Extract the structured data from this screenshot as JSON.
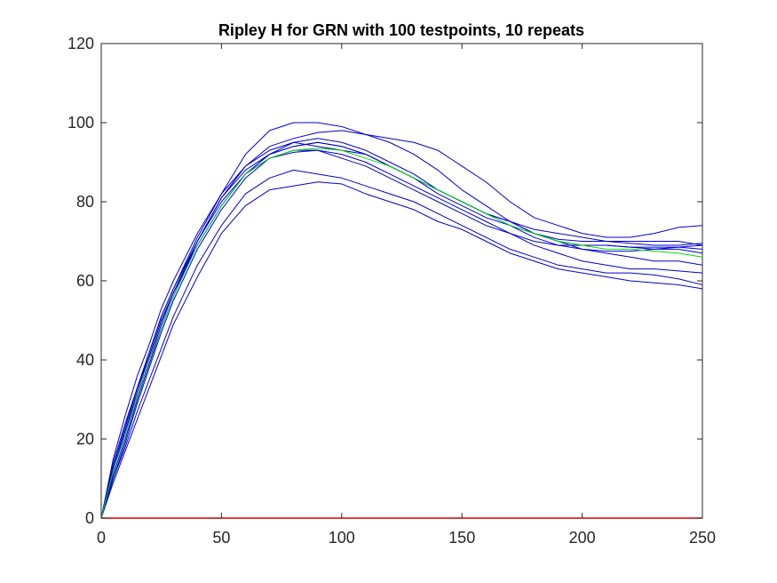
{
  "chart_data": {
    "type": "line",
    "title": "Ripley H for GRN with 100 testpoints, 10 repeats",
    "xlabel": "",
    "ylabel": "",
    "xlim": [
      0,
      250
    ],
    "ylim": [
      0,
      120
    ],
    "xticks": [
      "0",
      "50",
      "100",
      "150",
      "200",
      "250"
    ],
    "yticks": [
      "0",
      "20",
      "40",
      "60",
      "80",
      "100",
      "120"
    ],
    "grid": false,
    "colors": {
      "repeat": "#0000cc",
      "mean": "#00dd00",
      "baseline": "#cc0000"
    },
    "x": [
      0,
      5,
      10,
      15,
      20,
      25,
      30,
      40,
      50,
      60,
      70,
      80,
      90,
      100,
      110,
      120,
      130,
      140,
      150,
      160,
      170,
      180,
      190,
      200,
      210,
      220,
      230,
      240,
      250
    ],
    "series": [
      {
        "kind": "repeat",
        "values": [
          0,
          12,
          22,
          31,
          40,
          49,
          57,
          69,
          79,
          87,
          92,
          95,
          96,
          95,
          93,
          90,
          87,
          83,
          80,
          77,
          75,
          72,
          70,
          68,
          67,
          66,
          65,
          65,
          64
        ]
      },
      {
        "kind": "repeat",
        "values": [
          0,
          9,
          17,
          25,
          33,
          41,
          49,
          61,
          72,
          79,
          83,
          84,
          85,
          84.5,
          82,
          80,
          78,
          75,
          73,
          70,
          67,
          65,
          63,
          62,
          61,
          60,
          59.5,
          59,
          58
        ]
      },
      {
        "kind": "repeat",
        "values": [
          0,
          10,
          18,
          27,
          35,
          43,
          51,
          64,
          74,
          82,
          86,
          88,
          87,
          86,
          84,
          82,
          80,
          77,
          74,
          71,
          68,
          66,
          64,
          63,
          62,
          62,
          61.5,
          60.5,
          59
        ]
      },
      {
        "kind": "repeat",
        "values": [
          0,
          14,
          24,
          33,
          42,
          51,
          58,
          71,
          82,
          92,
          98,
          100,
          100,
          99,
          97,
          95,
          92,
          88,
          83,
          79,
          75,
          72,
          70,
          69,
          69,
          68.5,
          68.5,
          68.5,
          68
        ]
      },
      {
        "kind": "repeat",
        "values": [
          0,
          13,
          23,
          33,
          42,
          51,
          58,
          70,
          81,
          89,
          94,
          96,
          97.5,
          98,
          97,
          96,
          95,
          93,
          89,
          85,
          80,
          76,
          74,
          72,
          71,
          71,
          72,
          73.5,
          74
        ]
      },
      {
        "kind": "repeat",
        "values": [
          0,
          12,
          22,
          32,
          41,
          50,
          57,
          69,
          79,
          87,
          92,
          94,
          95,
          94,
          92,
          89,
          86,
          82,
          79,
          76,
          74,
          72,
          70.5,
          70,
          70,
          70,
          70,
          70,
          69
        ]
      },
      {
        "kind": "repeat",
        "values": [
          0,
          11,
          20,
          30,
          39,
          48,
          56,
          70,
          80,
          87,
          91,
          92.5,
          93,
          91,
          89,
          86,
          83,
          80,
          77,
          74,
          72,
          70,
          69,
          69,
          69,
          68.5,
          68,
          68,
          67
        ]
      },
      {
        "kind": "repeat",
        "values": [
          0,
          13,
          23,
          33,
          41,
          50,
          57,
          70,
          81,
          88,
          92,
          94,
          95,
          94,
          92,
          89,
          86,
          83,
          80,
          77,
          74,
          71,
          69,
          68,
          67.5,
          67.5,
          68,
          68.5,
          69
        ]
      },
      {
        "kind": "repeat",
        "values": [
          0,
          10,
          19,
          29,
          38,
          47,
          55,
          68,
          78,
          86,
          91,
          93,
          93,
          92,
          90,
          87,
          84,
          81,
          78,
          75,
          72,
          69,
          67,
          65,
          64,
          63,
          63,
          62.5,
          62
        ]
      },
      {
        "kind": "repeat",
        "values": [
          0,
          15,
          26,
          36,
          44,
          53,
          60,
          72,
          82,
          89,
          93,
          95,
          94,
          93,
          92,
          89,
          86,
          83,
          80,
          77,
          75,
          73,
          72,
          71,
          70,
          69.5,
          69,
          69,
          69.5
        ]
      },
      {
        "kind": "mean",
        "values": [
          0,
          12,
          21,
          31,
          40,
          48,
          56,
          69,
          79,
          87,
          91,
          93,
          93.5,
          93,
          91,
          89,
          86,
          83,
          80,
          77,
          74,
          72,
          70,
          69,
          68,
          68,
          67.5,
          67,
          66
        ]
      },
      {
        "kind": "baseline",
        "values": [
          0,
          0,
          0,
          0,
          0,
          0,
          0,
          0,
          0,
          0,
          0,
          0,
          0,
          0,
          0,
          0,
          0,
          0,
          0,
          0,
          0,
          0,
          0,
          0,
          0,
          0,
          0,
          0,
          0
        ]
      }
    ]
  }
}
